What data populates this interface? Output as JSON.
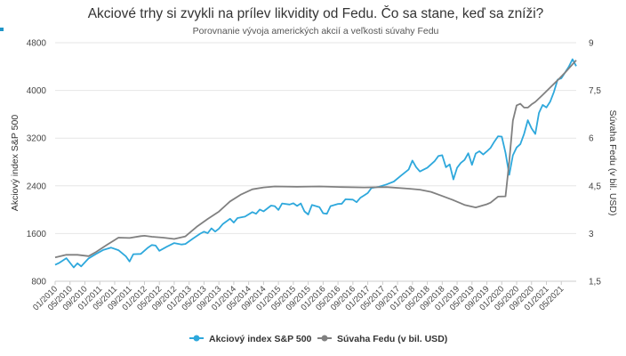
{
  "chart_data": {
    "type": "line",
    "title": "Akciové trhy si zvykli na prílev likvidity od Fedu. Čo sa stane, keď sa zníži?",
    "subtitle": "Porovnanie vývoja amerických akcií a veľkosti súvahy Fedu",
    "ylabel_left": "Akciový index S&P 500",
    "ylabel_right": "Súvaha Fedu (v bil. USD)",
    "yleft_range": [
      800,
      4800
    ],
    "yleft_ticks": [
      "800",
      "1600",
      "2400",
      "3200",
      "4000",
      "4800"
    ],
    "yright_range": [
      1.5,
      9
    ],
    "yright_ticks": [
      "1,5",
      "3",
      "4,5",
      "6",
      "7,5",
      "9"
    ],
    "x_range": [
      "01/2010",
      "09/2021"
    ],
    "x_ticks": [
      "01/2010",
      "05/2010",
      "09/2010",
      "01/2011",
      "05/2011",
      "09/2011",
      "01/2012",
      "05/2012",
      "09/2012",
      "01/2013",
      "05/2013",
      "09/2013",
      "01/2014",
      "05/2014",
      "09/2014",
      "01/2015",
      "05/2015",
      "09/2015",
      "01/2016",
      "05/2016",
      "09/2016",
      "01/2017",
      "05/2017",
      "09/2017",
      "01/2018",
      "05/2018",
      "09/2018",
      "01/2019",
      "05/2019",
      "09/2019",
      "01/2020",
      "05/2020",
      "09/2020",
      "01/2021",
      "05/2021"
    ],
    "grid": true,
    "legend_position": "bottom",
    "series": [
      {
        "name": "Akciový index S&P 500",
        "axis": "left",
        "color": "#2ea8dc",
        "points": [
          [
            "01/2010",
            1074
          ],
          [
            "02/2010",
            1104
          ],
          [
            "04/2010",
            1187
          ],
          [
            "06/2010",
            1031
          ],
          [
            "07/2010",
            1101
          ],
          [
            "08/2010",
            1049
          ],
          [
            "10/2010",
            1183
          ],
          [
            "12/2010",
            1258
          ],
          [
            "02/2011",
            1327
          ],
          [
            "04/2011",
            1364
          ],
          [
            "06/2011",
            1321
          ],
          [
            "08/2011",
            1219
          ],
          [
            "09/2011",
            1131
          ],
          [
            "10/2011",
            1253
          ],
          [
            "12/2011",
            1258
          ],
          [
            "02/2012",
            1366
          ],
          [
            "03/2012",
            1408
          ],
          [
            "04/2012",
            1398
          ],
          [
            "05/2012",
            1310
          ],
          [
            "07/2012",
            1379
          ],
          [
            "09/2012",
            1441
          ],
          [
            "11/2012",
            1416
          ],
          [
            "12/2012",
            1426
          ],
          [
            "02/2013",
            1515
          ],
          [
            "04/2013",
            1598
          ],
          [
            "05/2013",
            1631
          ],
          [
            "06/2013",
            1606
          ],
          [
            "07/2013",
            1686
          ],
          [
            "08/2013",
            1633
          ],
          [
            "09/2013",
            1682
          ],
          [
            "10/2013",
            1757
          ],
          [
            "12/2013",
            1848
          ],
          [
            "01/2014",
            1783
          ],
          [
            "02/2014",
            1859
          ],
          [
            "04/2014",
            1884
          ],
          [
            "06/2014",
            1960
          ],
          [
            "07/2014",
            1931
          ],
          [
            "08/2014",
            2003
          ],
          [
            "09/2014",
            1972
          ],
          [
            "11/2014",
            2068
          ],
          [
            "12/2014",
            2059
          ],
          [
            "01/2015",
            1995
          ],
          [
            "02/2015",
            2105
          ],
          [
            "04/2015",
            2086
          ],
          [
            "05/2015",
            2107
          ],
          [
            "06/2015",
            2063
          ],
          [
            "07/2015",
            2104
          ],
          [
            "08/2015",
            1972
          ],
          [
            "09/2015",
            1920
          ],
          [
            "10/2015",
            2079
          ],
          [
            "12/2015",
            2044
          ],
          [
            "01/2016",
            1940
          ],
          [
            "02/2016",
            1932
          ],
          [
            "03/2016",
            2060
          ],
          [
            "05/2016",
            2097
          ],
          [
            "06/2016",
            2099
          ],
          [
            "07/2016",
            2174
          ],
          [
            "09/2016",
            2168
          ],
          [
            "10/2016",
            2126
          ],
          [
            "11/2016",
            2199
          ],
          [
            "12/2016",
            2239
          ],
          [
            "01/2017",
            2279
          ],
          [
            "02/2017",
            2364
          ],
          [
            "04/2017",
            2384
          ],
          [
            "06/2017",
            2423
          ],
          [
            "08/2017",
            2472
          ],
          [
            "10/2017",
            2575
          ],
          [
            "12/2017",
            2674
          ],
          [
            "01/2018",
            2824
          ],
          [
            "02/2018",
            2714
          ],
          [
            "03/2018",
            2641
          ],
          [
            "05/2018",
            2705
          ],
          [
            "07/2018",
            2816
          ],
          [
            "08/2018",
            2902
          ],
          [
            "09/2018",
            2914
          ],
          [
            "10/2018",
            2712
          ],
          [
            "11/2018",
            2760
          ],
          [
            "12/2018",
            2507
          ],
          [
            "01/2019",
            2704
          ],
          [
            "02/2019",
            2784
          ],
          [
            "03/2019",
            2834
          ],
          [
            "04/2019",
            2946
          ],
          [
            "05/2019",
            2752
          ],
          [
            "06/2019",
            2942
          ],
          [
            "07/2019",
            2980
          ],
          [
            "08/2019",
            2926
          ],
          [
            "09/2019",
            2977
          ],
          [
            "10/2019",
            3038
          ],
          [
            "11/2019",
            3141
          ],
          [
            "12/2019",
            3231
          ],
          [
            "01/2020",
            3226
          ],
          [
            "02/2020",
            2954
          ],
          [
            "03/2020",
            2585
          ],
          [
            "04/2020",
            2912
          ],
          [
            "05/2020",
            3044
          ],
          [
            "06/2020",
            3100
          ],
          [
            "07/2020",
            3271
          ],
          [
            "08/2020",
            3500
          ],
          [
            "09/2020",
            3363
          ],
          [
            "10/2020",
            3270
          ],
          [
            "11/2020",
            3622
          ],
          [
            "12/2020",
            3756
          ],
          [
            "01/2021",
            3714
          ],
          [
            "02/2021",
            3811
          ],
          [
            "03/2021",
            3973
          ],
          [
            "04/2021",
            4181
          ],
          [
            "05/2021",
            4204
          ],
          [
            "06/2021",
            4298
          ],
          [
            "07/2021",
            4395
          ],
          [
            "08/2021",
            4523
          ],
          [
            "09/2021",
            4408
          ]
        ]
      },
      {
        "name": "Súvaha Fedu (v bil. USD)",
        "axis": "right",
        "color": "#808080",
        "points": [
          [
            "01/2010",
            2.25
          ],
          [
            "04/2010",
            2.33
          ],
          [
            "07/2010",
            2.33
          ],
          [
            "10/2010",
            2.29
          ],
          [
            "12/2010",
            2.42
          ],
          [
            "03/2011",
            2.65
          ],
          [
            "06/2011",
            2.87
          ],
          [
            "09/2011",
            2.86
          ],
          [
            "12/2011",
            2.92
          ],
          [
            "01/2012",
            2.93
          ],
          [
            "03/2012",
            2.9
          ],
          [
            "06/2012",
            2.87
          ],
          [
            "09/2012",
            2.83
          ],
          [
            "12/2012",
            2.91
          ],
          [
            "03/2013",
            3.21
          ],
          [
            "06/2013",
            3.46
          ],
          [
            "09/2013",
            3.69
          ],
          [
            "12/2013",
            4.01
          ],
          [
            "03/2014",
            4.23
          ],
          [
            "06/2014",
            4.39
          ],
          [
            "09/2014",
            4.45
          ],
          [
            "12/2014",
            4.48
          ],
          [
            "06/2015",
            4.47
          ],
          [
            "12/2015",
            4.48
          ],
          [
            "06/2016",
            4.46
          ],
          [
            "12/2016",
            4.45
          ],
          [
            "06/2017",
            4.46
          ],
          [
            "12/2017",
            4.41
          ],
          [
            "03/2018",
            4.38
          ],
          [
            "06/2018",
            4.31
          ],
          [
            "09/2018",
            4.18
          ],
          [
            "12/2018",
            4.05
          ],
          [
            "03/2019",
            3.9
          ],
          [
            "06/2019",
            3.82
          ],
          [
            "09/2019",
            3.92
          ],
          [
            "10/2019",
            3.97
          ],
          [
            "12/2019",
            4.16
          ],
          [
            "02/2020",
            4.17
          ],
          [
            "03/2020",
            5.26
          ],
          [
            "04/2020",
            6.55
          ],
          [
            "05/2020",
            7.03
          ],
          [
            "06/2020",
            7.08
          ],
          [
            "07/2020",
            6.96
          ],
          [
            "08/2020",
            6.96
          ],
          [
            "09/2020",
            7.06
          ],
          [
            "10/2020",
            7.14
          ],
          [
            "12/2020",
            7.36
          ],
          [
            "02/2021",
            7.59
          ],
          [
            "04/2021",
            7.82
          ],
          [
            "06/2021",
            8.06
          ],
          [
            "09/2021",
            8.45
          ]
        ]
      }
    ]
  },
  "colors": {
    "spx": "#2ea8dc",
    "fed": "#808080",
    "accent": "#2196c8"
  }
}
